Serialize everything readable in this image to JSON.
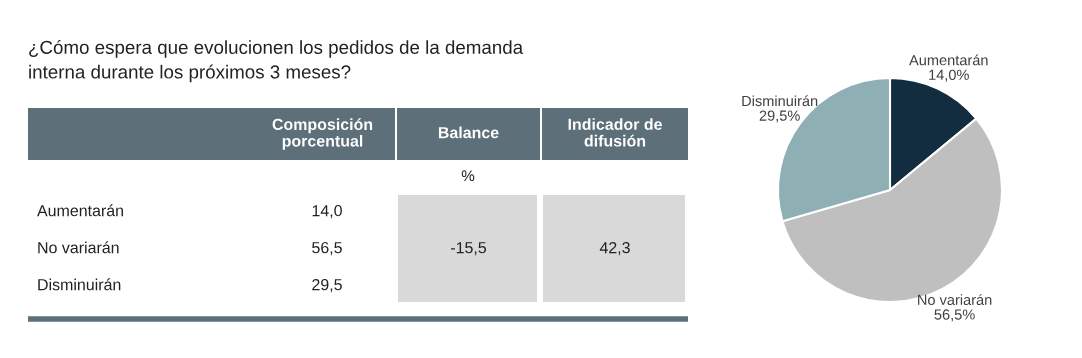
{
  "chart_data": [
    {
      "type": "other",
      "title": "¿Cómo espera que evolucionen los pedidos de la demanda\ninterna durante los próximos 3 meses?",
      "categories": [
        "Aumentarán",
        "No variarán",
        "Disminuirán"
      ],
      "value_labels": [
        "14,0",
        "56,5",
        "29,5"
      ],
      "annotations": [
        "Composición\nporcentual",
        "Balance",
        "Indicador de\ndifusión",
        "%",
        "-15,5",
        "42,3"
      ]
    },
    {
      "type": "pie",
      "categories": [
        "Aumentarán",
        "No variarán",
        "Disminuirán"
      ],
      "values": [
        14.0,
        56.5,
        29.5
      ],
      "colors": [
        "#132d40",
        "#bfbfbf",
        "#8eafb4"
      ],
      "value_labels": [
        "14,0%",
        "56,5%",
        "29,5%"
      ]
    }
  ]
}
